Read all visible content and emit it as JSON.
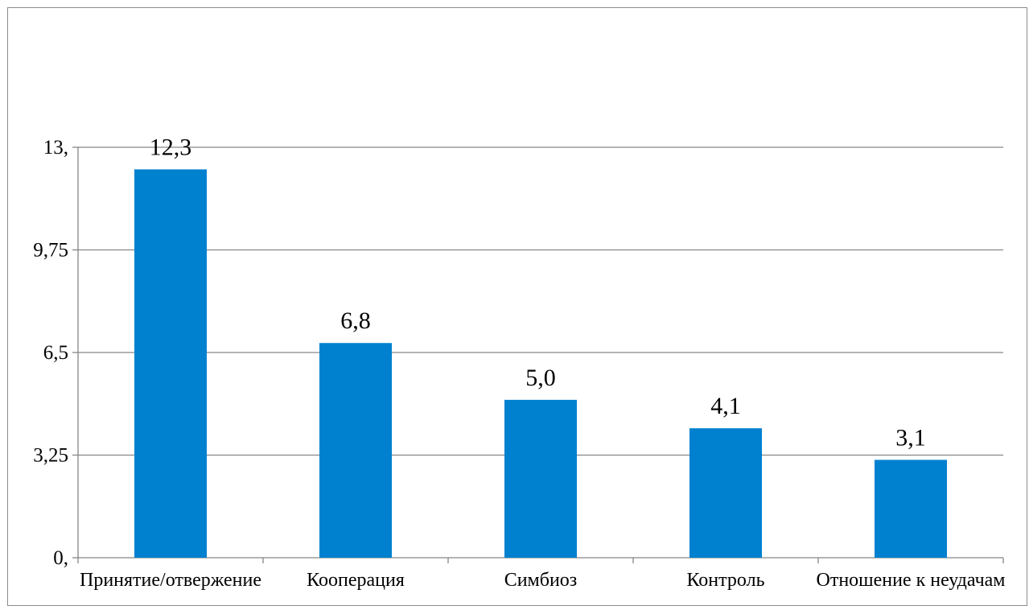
{
  "chart_data": {
    "type": "bar",
    "title": "",
    "xlabel": "",
    "ylabel": "",
    "categories": [
      "Принятие/отвержение",
      "Кооперация",
      "Симбиоз",
      "Контроль",
      "Отношение к неудачам"
    ],
    "values": [
      12.3,
      6.8,
      5.0,
      4.1,
      3.1
    ],
    "data_labels": [
      "12,3",
      "6,8",
      "5,0",
      "4,1",
      "3,1"
    ],
    "ylim": [
      0,
      13
    ],
    "yticks": [
      0,
      3.25,
      6.5,
      9.75,
      13
    ],
    "ytick_labels": [
      "0,",
      "3,25",
      "6,5",
      "9,75",
      "13,"
    ],
    "grid": true,
    "legend": "none",
    "bar_color": "#0081CF",
    "grid_color": "#868686"
  }
}
